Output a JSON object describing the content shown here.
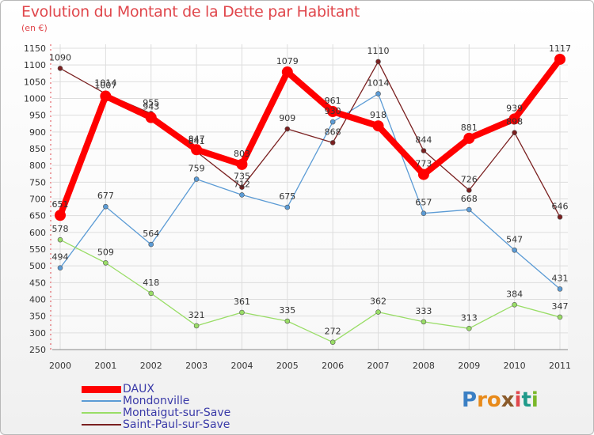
{
  "title": "Evolution du Montant de la Dette par Habitant",
  "unit": "(en €)",
  "brand": {
    "text": "Proxiti",
    "letters": [
      "P",
      "r",
      "o",
      "x",
      "i",
      "t",
      "i"
    ],
    "colors": [
      "#3a7fc4",
      "#e88a1a",
      "#e88a1a",
      "#8a5a2a",
      "#e0474c",
      "#1f9a8a",
      "#7ab82a"
    ]
  },
  "chart_data": {
    "type": "line",
    "x": [
      "2000",
      "2001",
      "2002",
      "2003",
      "2004",
      "2005",
      "2006",
      "2007",
      "2008",
      "2009",
      "2010",
      "2011"
    ],
    "ylim": [
      250,
      1150
    ],
    "yticks": [
      250,
      300,
      350,
      400,
      450,
      500,
      550,
      600,
      650,
      700,
      750,
      800,
      850,
      900,
      950,
      1000,
      1050,
      1100,
      1150
    ],
    "grid": true,
    "legend_position": "bottom-left",
    "series": [
      {
        "name": "DAUX",
        "color": "#ff0000",
        "width": 8,
        "dot": 7,
        "values": [
          651,
          1007,
          943,
          847,
          803,
          1079,
          961,
          918,
          773,
          881,
          939,
          1117
        ]
      },
      {
        "name": "Mondonville",
        "color": "#5b9bd5",
        "width": 1.3,
        "dot": 3,
        "values": [
          494,
          677,
          564,
          759,
          712,
          675,
          930,
          1014,
          657,
          668,
          547,
          431
        ]
      },
      {
        "name": "Montaigut-sur-Save",
        "color": "#99dd66",
        "width": 1.3,
        "dot": 3,
        "values": [
          578,
          509,
          418,
          321,
          361,
          335,
          272,
          362,
          333,
          313,
          384,
          347
        ]
      },
      {
        "name": "Saint-Paul-sur-Save",
        "color": "#7a2020",
        "width": 1.3,
        "dot": 3,
        "values": [
          1090,
          1014,
          955,
          841,
          735,
          909,
          868,
          1110,
          844,
          726,
          898,
          646
        ]
      }
    ],
    "data_labels": [
      {
        "x": "2000",
        "text": "1090"
      },
      {
        "x": "2000",
        "text": "651"
      },
      {
        "x": "2000",
        "text": "578"
      },
      {
        "x": "2000",
        "text": "494"
      },
      {
        "x": "2001",
        "text": "1014"
      },
      {
        "x": "2001",
        "text": "1007"
      },
      {
        "x": "2001",
        "text": "677"
      },
      {
        "x": "2001",
        "text": "509"
      },
      {
        "x": "2002",
        "text": "955"
      },
      {
        "x": "2002",
        "text": "943"
      },
      {
        "x": "2002",
        "text": "564"
      },
      {
        "x": "2002",
        "text": "418"
      },
      {
        "x": "2003",
        "text": "847"
      },
      {
        "x": "2003",
        "text": "841"
      },
      {
        "x": "2003",
        "text": "759"
      },
      {
        "x": "2003",
        "text": "321"
      },
      {
        "x": "2004",
        "text": "803"
      },
      {
        "x": "2004",
        "text": "735"
      },
      {
        "x": "2004",
        "text": "712"
      },
      {
        "x": "2004",
        "text": "361"
      },
      {
        "x": "2005",
        "text": "1079"
      },
      {
        "x": "2005",
        "text": "909"
      },
      {
        "x": "2005",
        "text": "675"
      },
      {
        "x": "2005",
        "text": "335"
      },
      {
        "x": "2006",
        "text": "961"
      },
      {
        "x": "2006",
        "text": "930"
      },
      {
        "x": "2006",
        "text": "868"
      },
      {
        "x": "2006",
        "text": "272"
      },
      {
        "x": "2007",
        "text": "1110"
      },
      {
        "x": "2007",
        "text": "1014"
      },
      {
        "x": "2007",
        "text": "918"
      },
      {
        "x": "2007",
        "text": "362"
      },
      {
        "x": "2008",
        "text": "844"
      },
      {
        "x": "2008",
        "text": "773"
      },
      {
        "x": "2008",
        "text": "657"
      },
      {
        "x": "2008",
        "text": "333"
      },
      {
        "x": "2009",
        "text": "881"
      },
      {
        "x": "2009",
        "text": "726"
      },
      {
        "x": "2009",
        "text": "668"
      },
      {
        "x": "2009",
        "text": "313"
      },
      {
        "x": "2010",
        "text": "939"
      },
      {
        "x": "2010",
        "text": "898"
      },
      {
        "x": "2010",
        "text": "547"
      },
      {
        "x": "2010",
        "text": "384"
      },
      {
        "x": "2011",
        "text": "1117"
      },
      {
        "x": "2011",
        "text": "646"
      },
      {
        "x": "2011",
        "text": "431"
      },
      {
        "x": "2011",
        "text": "347"
      }
    ]
  }
}
